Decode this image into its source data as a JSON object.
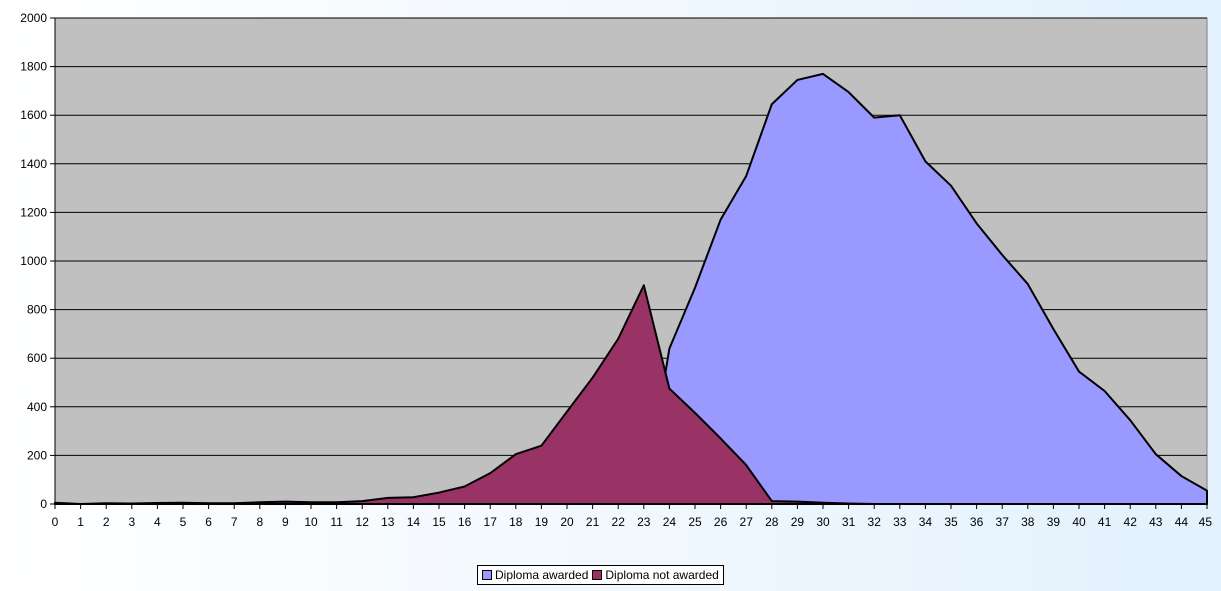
{
  "chart_data": {
    "type": "area",
    "title": "",
    "xlabel": "",
    "ylabel": "",
    "x": [
      0,
      1,
      2,
      3,
      4,
      5,
      6,
      7,
      8,
      9,
      10,
      11,
      12,
      13,
      14,
      15,
      16,
      17,
      18,
      19,
      20,
      21,
      22,
      23,
      24,
      25,
      26,
      27,
      28,
      29,
      30,
      31,
      32,
      33,
      34,
      35,
      36,
      37,
      38,
      39,
      40,
      41,
      42,
      43,
      44,
      45
    ],
    "ylim": [
      0,
      2000
    ],
    "yticks": [
      0,
      200,
      400,
      600,
      800,
      1000,
      1200,
      1400,
      1600,
      1800,
      2000
    ],
    "grid": true,
    "legend_position": "bottom",
    "plot_background": "#c0c0c0",
    "series": [
      {
        "name": "Diploma awarded",
        "color": "#9999ff",
        "values": [
          0,
          0,
          0,
          0,
          0,
          0,
          0,
          0,
          0,
          0,
          0,
          0,
          0,
          0,
          0,
          0,
          0,
          0,
          0,
          0,
          0,
          0,
          0,
          0,
          640,
          890,
          1170,
          1350,
          1645,
          1745,
          1770,
          1695,
          1590,
          1600,
          1410,
          1310,
          1155,
          1025,
          905,
          720,
          545,
          465,
          345,
          205,
          115,
          55
        ]
      },
      {
        "name": "Diploma not awarded",
        "color": "#993366",
        "values": [
          5,
          0,
          3,
          2,
          4,
          5,
          3,
          3,
          7,
          10,
          7,
          7,
          12,
          25,
          28,
          47,
          72,
          127,
          205,
          240,
          380,
          520,
          680,
          900,
          475,
          375,
          270,
          160,
          12,
          10,
          5,
          2,
          0,
          0,
          0,
          0,
          0,
          0,
          0,
          0,
          0,
          0,
          0,
          0,
          0,
          0
        ]
      }
    ]
  }
}
